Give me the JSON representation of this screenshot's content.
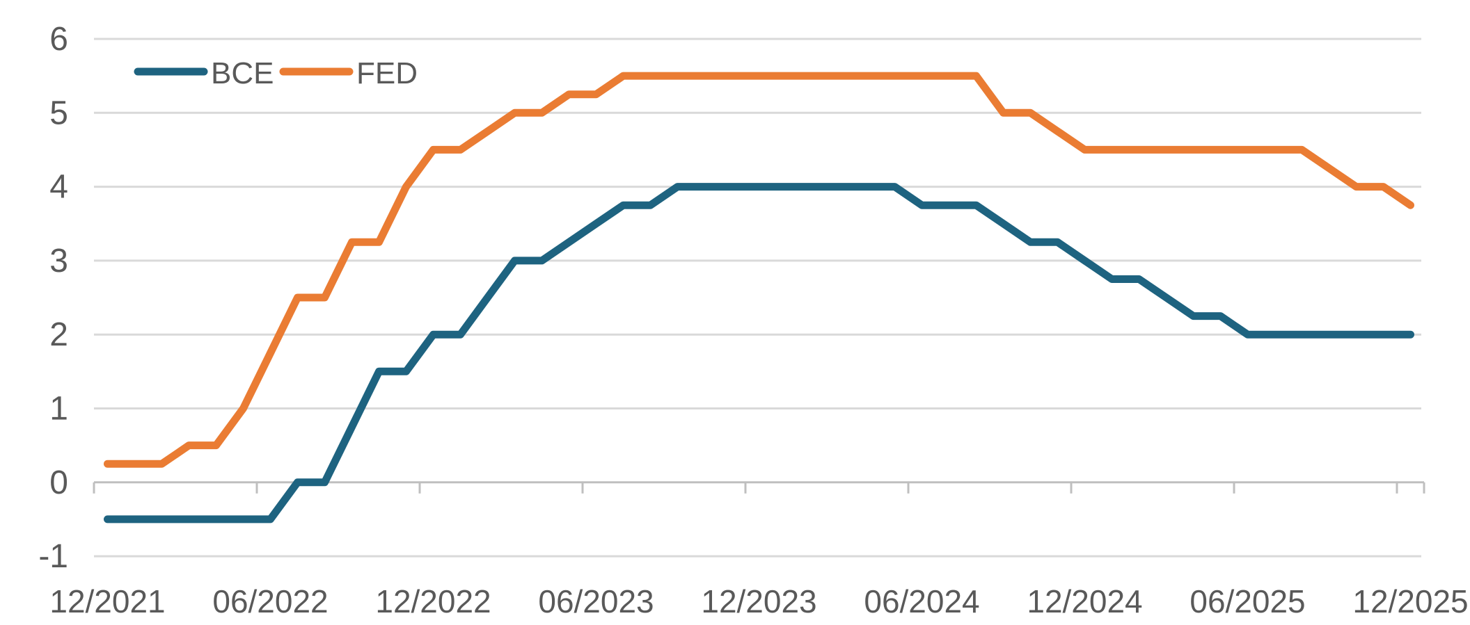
{
  "page": {
    "background": "#ffffff"
  },
  "colors": {
    "bce_line": "#1e6380",
    "fed_line": "#ea7c33",
    "gridline": "#d9d9d9",
    "axis_line": "#bfbfbf",
    "tick_label": "#595959",
    "legend_label": "#595959"
  },
  "legend": {
    "items": [
      {
        "label": "BCE"
      },
      {
        "label": "FED"
      }
    ]
  },
  "y_axis": {
    "tick_labels": [
      "6",
      "5",
      "4",
      "3",
      "2",
      "1",
      "0",
      "-1"
    ]
  },
  "x_axis": {
    "tick_labels": [
      "12/2021",
      "06/2022",
      "12/2022",
      "06/2023",
      "12/2023",
      "06/2024",
      "12/2024",
      "06/2025",
      "12/2025"
    ]
  },
  "chart_data": {
    "type": "line",
    "title": "",
    "xlabel": "",
    "ylabel": "",
    "ylim": [
      -1,
      6
    ],
    "y_ticks": [
      6,
      5,
      4,
      3,
      2,
      1,
      0,
      -1
    ],
    "grid": true,
    "legend_position": "top-left-inside",
    "x_tick_labels": [
      "12/2021",
      "06/2022",
      "12/2022",
      "06/2023",
      "12/2023",
      "06/2024",
      "12/2024",
      "06/2025",
      "12/2025"
    ],
    "x": [
      "12/2021",
      "01/2022",
      "02/2022",
      "03/2022",
      "04/2022",
      "05/2022",
      "06/2022",
      "07/2022",
      "08/2022",
      "09/2022",
      "10/2022",
      "11/2022",
      "12/2022",
      "01/2023",
      "02/2023",
      "03/2023",
      "04/2023",
      "05/2023",
      "06/2023",
      "07/2023",
      "08/2023",
      "09/2023",
      "10/2023",
      "11/2023",
      "12/2023",
      "01/2024",
      "02/2024",
      "03/2024",
      "04/2024",
      "05/2024",
      "06/2024",
      "07/2024",
      "08/2024",
      "09/2024",
      "10/2024",
      "11/2024",
      "12/2024",
      "01/2025",
      "02/2025",
      "03/2025",
      "04/2025",
      "05/2025",
      "06/2025",
      "07/2025",
      "08/2025",
      "09/2025",
      "10/2025",
      "11/2025",
      "12/2025"
    ],
    "series": [
      {
        "name": "BCE",
        "color": "#1e6380",
        "values": [
          -0.5,
          -0.5,
          -0.5,
          -0.5,
          -0.5,
          -0.5,
          -0.5,
          0,
          0,
          0.75,
          1.5,
          1.5,
          2,
          2,
          2.5,
          3,
          3,
          3.25,
          3.5,
          3.75,
          3.75,
          4,
          4,
          4,
          4,
          4,
          4,
          4,
          4,
          4,
          3.75,
          3.75,
          3.75,
          3.5,
          3.25,
          3.25,
          3,
          2.75,
          2.75,
          2.5,
          2.25,
          2.25,
          2,
          2,
          2,
          2,
          2,
          2,
          2
        ]
      },
      {
        "name": "FED",
        "color": "#ea7c33",
        "values": [
          0.25,
          0.25,
          0.25,
          0.5,
          0.5,
          1,
          1.75,
          2.5,
          2.5,
          3.25,
          3.25,
          4,
          4.5,
          4.5,
          4.75,
          5,
          5,
          5.25,
          5.25,
          5.5,
          5.5,
          5.5,
          5.5,
          5.5,
          5.5,
          5.5,
          5.5,
          5.5,
          5.5,
          5.5,
          5.5,
          5.5,
          5.5,
          5,
          5,
          4.75,
          4.5,
          4.5,
          4.5,
          4.5,
          4.5,
          4.5,
          4.5,
          4.5,
          4.5,
          4.25,
          4,
          4,
          3.75
        ]
      }
    ]
  }
}
